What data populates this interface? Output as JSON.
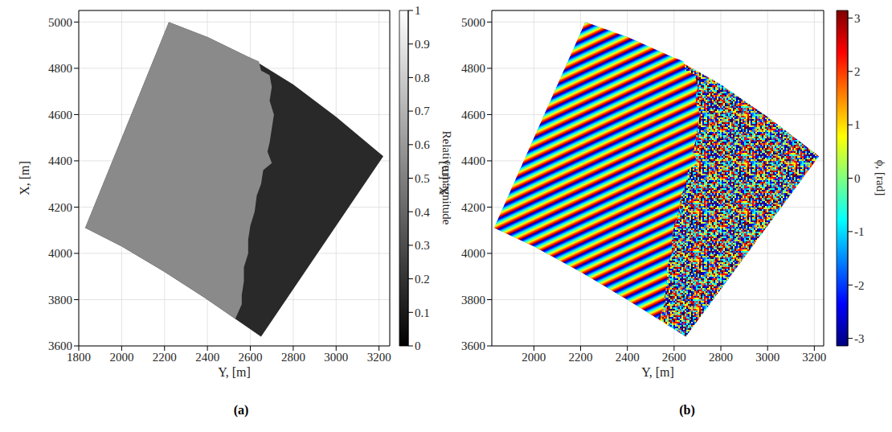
{
  "chart_data": [
    {
      "type": "image",
      "panel": "(a)",
      "xlabel": "Y, [m]",
      "ylabel": "X, [m]",
      "xlim": [
        1800,
        3250
      ],
      "xticks": [
        1800,
        2000,
        2200,
        2400,
        2600,
        2800,
        3000,
        3200
      ],
      "ylim": [
        3600,
        5050
      ],
      "yticks": [
        3600,
        3800,
        4000,
        4200,
        4400,
        4600,
        4800,
        5000
      ],
      "grid": true,
      "swath": {
        "Y": [
          2220,
          2400,
          2600,
          2800,
          3000,
          3220,
          2650,
          2400,
          2200,
          2000,
          1830
        ],
        "X": [
          5000,
          4935,
          4845,
          4730,
          4590,
          4420,
          3640,
          3800,
          3920,
          4030,
          4110
        ],
        "value": 0.16
      },
      "land": {
        "Y": [
          2220,
          2400,
          2580,
          2640,
          2650,
          2690,
          2700,
          2690,
          2710,
          2700,
          2690,
          2680,
          2700,
          2660,
          2650,
          2630,
          2620,
          2600,
          2590,
          2590,
          2570,
          2570,
          2560,
          2560,
          2530,
          2400,
          2200,
          2000,
          1830
        ],
        "X": [
          5000,
          4935,
          4854,
          4830,
          4790,
          4770,
          4720,
          4660,
          4600,
          4540,
          4480,
          4440,
          4390,
          4360,
          4300,
          4250,
          4180,
          4120,
          4060,
          4000,
          3940,
          3880,
          3820,
          3780,
          3717,
          3800,
          3920,
          4030,
          4110
        ],
        "value": 0.54
      },
      "colorbar": {
        "label": "Relative magnitude",
        "range": [
          0,
          1
        ],
        "ticks": [
          0,
          0.1,
          0.2,
          0.3,
          0.4,
          0.5,
          0.6,
          0.7,
          0.8,
          0.9,
          1
        ],
        "colors": [
          "#000000",
          "#ffffff"
        ]
      }
    },
    {
      "type": "image",
      "panel": "(b)",
      "xlabel": "Y, [m]",
      "ylabel": "X, [m]",
      "xlim": [
        1820,
        3240
      ],
      "xticks": [
        2000,
        2200,
        2400,
        2600,
        2800,
        3000,
        3200
      ],
      "ylim": [
        3600,
        5050
      ],
      "yticks": [
        3600,
        3800,
        4000,
        4200,
        4400,
        4600,
        4800,
        5000
      ],
      "grid": true,
      "swath": {
        "Y": [
          2220,
          2400,
          2600,
          2800,
          3000,
          3220,
          2650,
          2400,
          2200,
          2000,
          1830
        ],
        "X": [
          5000,
          4935,
          4845,
          4730,
          4590,
          4420,
          3640,
          3800,
          3920,
          4030,
          4110
        ]
      },
      "land": {
        "Y": [
          2220,
          2400,
          2580,
          2640,
          2650,
          2690,
          2700,
          2690,
          2710,
          2700,
          2690,
          2680,
          2700,
          2660,
          2650,
          2630,
          2620,
          2600,
          2590,
          2590,
          2570,
          2570,
          2560,
          2560,
          2530,
          2400,
          2200,
          2000,
          1830
        ],
        "X": [
          5000,
          4935,
          4854,
          4830,
          4790,
          4770,
          4720,
          4660,
          4600,
          4540,
          4480,
          4440,
          4390,
          4360,
          4300,
          4250,
          4180,
          4120,
          4060,
          4000,
          3940,
          3880,
          3820,
          3780,
          3717,
          3800,
          3920,
          4030,
          4110
        ]
      },
      "colorbar": {
        "label": "ϕ, [rad]",
        "range": [
          -3.14159,
          3.14159
        ],
        "ticks": [
          -3,
          -2,
          -1,
          0,
          1,
          2,
          3
        ],
        "colors": [
          "#00007f",
          "#0000ff",
          "#007fff",
          "#00ffff",
          "#7fff7f",
          "#ffff00",
          "#ff7f00",
          "#ff0000",
          "#7f0000"
        ]
      }
    }
  ]
}
